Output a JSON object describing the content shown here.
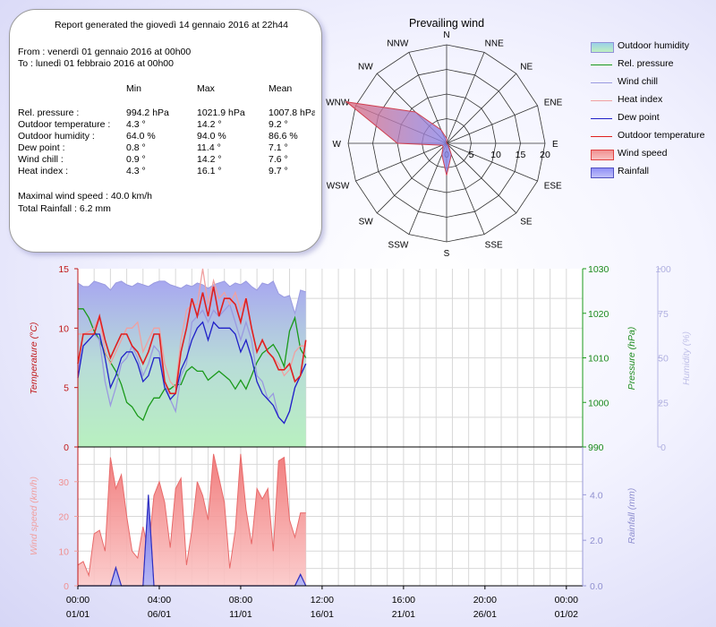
{
  "report": {
    "title": "Report generated the giovedì 14 gennaio 2016 at 22h44",
    "from": "From : venerdì 01 gennaio 2016 at 00h00",
    "to": "To : lunedì 01 febbraio 2016 at 00h00",
    "columns": [
      "Min",
      "Max",
      "Mean"
    ],
    "rows": [
      {
        "label": "Rel. pressure :",
        "min": "994.2 hPa",
        "max": "1021.9 hPa",
        "mean": "1007.8 hPa"
      },
      {
        "label": "Outdoor temperature :",
        "min": "4.3 °",
        "max": "14.2 °",
        "mean": "9.2 °"
      },
      {
        "label": "Outdoor humidity :",
        "min": "64.0 %",
        "max": "94.0 %",
        "mean": "86.6 %"
      },
      {
        "label": "Dew point :",
        "min": "0.8 °",
        "max": "11.4 °",
        "mean": "7.1 °"
      },
      {
        "label": "Wind chill :",
        "min": "0.9 °",
        "max": "14.2 °",
        "mean": "7.6 °"
      },
      {
        "label": "Heat index :",
        "min": "4.3 °",
        "max": "16.1 °",
        "mean": "9.7 °"
      }
    ],
    "max_wind": "Maximal wind speed : 40.0 km/h",
    "total_rain": "Total Rainfall : 6.2 mm"
  },
  "legend": [
    {
      "label": "Outdoor humidity",
      "kind": "area",
      "color": "#b8e8c0",
      "edge": "#9090d8"
    },
    {
      "label": "Rel. pressure",
      "kind": "line",
      "color": "#1a9a1a"
    },
    {
      "label": "Wind chill",
      "kind": "line",
      "color": "#9a9ae0"
    },
    {
      "label": "Heat index",
      "kind": "line",
      "color": "#f0a0a0"
    },
    {
      "label": "Dew point",
      "kind": "line",
      "color": "#2020c8"
    },
    {
      "label": "Outdoor temperature",
      "kind": "line",
      "color": "#e02020"
    },
    {
      "label": "Wind speed",
      "kind": "area",
      "color": "#f07878",
      "edge": "#e04040"
    },
    {
      "label": "Rainfall",
      "kind": "area",
      "color": "#8080f0",
      "edge": "#5050c0"
    }
  ],
  "chart_data": [
    {
      "type": "radar",
      "title": "Prevailing wind",
      "directions": [
        "N",
        "NNE",
        "NE",
        "ENE",
        "E",
        "ESE",
        "SE",
        "SSE",
        "S",
        "SSW",
        "SW",
        "WSW",
        "W",
        "WNW",
        "NW",
        "NNW"
      ],
      "radial_ticks": [
        "0",
        "5",
        "10",
        "15",
        "20"
      ],
      "rmax": 20,
      "values": [
        1,
        0,
        0,
        0,
        0,
        0,
        0.5,
        2.5,
        6.5,
        2.5,
        1,
        1,
        10,
        22,
        9,
        3
      ],
      "color": "#e04040"
    },
    {
      "type": "line",
      "ylabel": "Temperature (°C)",
      "ylabel_right1": "Pressure (hPa)",
      "ylabel_right2": "Humidity (%)",
      "ylim": [
        0,
        15
      ],
      "yticks": [
        "0",
        "5",
        "10",
        "15"
      ],
      "pressure_ylim": [
        990,
        1030
      ],
      "pressure_ticks": [
        "990",
        "1000",
        "1010",
        "1020",
        "1030"
      ],
      "humidity_ylim": [
        0,
        100
      ],
      "humidity_ticks": [
        "0",
        "25",
        "50",
        "75",
        "100"
      ],
      "x": [
        0,
        0.33,
        0.67,
        1,
        1.33,
        1.67,
        2,
        2.33,
        2.67,
        3,
        3.33,
        3.67,
        4,
        4.33,
        4.67,
        5,
        5.33,
        5.67,
        6,
        6.33,
        6.67,
        7,
        7.33,
        7.67,
        8,
        8.33,
        8.67,
        9,
        9.33,
        9.67,
        10,
        10.33,
        10.67,
        11,
        11.33,
        11.67,
        12,
        12.33,
        12.67,
        13,
        13.33,
        13.67,
        14
      ],
      "series": [
        {
          "name": "Outdoor humidity",
          "axis": "humidity",
          "color": "#9a9ae0",
          "values": [
            92,
            90,
            90,
            93,
            92,
            91,
            88,
            92,
            93,
            91,
            90,
            92,
            91,
            90,
            92,
            93,
            93,
            91,
            90,
            89,
            91,
            90,
            92,
            91,
            89,
            91,
            92,
            93,
            90,
            92,
            91,
            93,
            90,
            88,
            92,
            91,
            93,
            86,
            84,
            85,
            75,
            88,
            87
          ]
        },
        {
          "name": "Rel. pressure",
          "axis": "pressure",
          "color": "#1a9a1a",
          "values": [
            1021,
            1021,
            1019,
            1016,
            1014,
            1011,
            1009,
            1007,
            1004,
            1000,
            999,
            997,
            996,
            999,
            1001,
            1001,
            1003,
            1003,
            1004,
            1004,
            1007,
            1008,
            1007,
            1007,
            1005,
            1006,
            1007,
            1006,
            1005,
            1003,
            1005,
            1003,
            1006,
            1009,
            1011,
            1012,
            1013,
            1011,
            1008,
            1016,
            1019,
            1012,
            1010
          ]
        },
        {
          "name": "Wind chill",
          "axis": "temp",
          "color": "#9a9ae0",
          "values": [
            6.5,
            8.5,
            9,
            9.5,
            9,
            5.5,
            3.5,
            5,
            7,
            7.5,
            8.5,
            7.5,
            6,
            7,
            8.5,
            8,
            5.5,
            4,
            3,
            6,
            7,
            10.5,
            11,
            11.5,
            10.5,
            11.5,
            11,
            11.5,
            12,
            10.5,
            9,
            10.5,
            9,
            6,
            5.5,
            4,
            4.5,
            2.5,
            2,
            3,
            5,
            6,
            7
          ]
        },
        {
          "name": "Heat index",
          "axis": "temp",
          "color": "#f0a0a0",
          "values": [
            9.5,
            9.5,
            9.7,
            10,
            11,
            8,
            7,
            8,
            9,
            10,
            10,
            10.5,
            8,
            9,
            10,
            10,
            7,
            5.5,
            5,
            9,
            11.5,
            12,
            12,
            15,
            12,
            14,
            12.5,
            13,
            12,
            13,
            11.5,
            12.5,
            10,
            8,
            9,
            8,
            7.5,
            7,
            6,
            6.5,
            8,
            8.5,
            8.5
          ]
        },
        {
          "name": "Dew point",
          "axis": "temp",
          "color": "#2020c8",
          "values": [
            5.8,
            8.5,
            9,
            9.5,
            9.5,
            7.5,
            5,
            6,
            7.5,
            8,
            8,
            7,
            5.5,
            6,
            7.5,
            7.5,
            5,
            4,
            4.5,
            6.5,
            7.5,
            9,
            10,
            10.5,
            9,
            10.5,
            10,
            10,
            10,
            9.5,
            8,
            9,
            7.5,
            5.5,
            4.5,
            4,
            3.5,
            2.5,
            2,
            3,
            5,
            6,
            7
          ]
        },
        {
          "name": "Outdoor temperature",
          "axis": "temp",
          "color": "#e02020",
          "values": [
            7,
            9.5,
            9.5,
            9.5,
            11,
            9,
            7.5,
            8.5,
            9.5,
            9.5,
            8.5,
            8,
            7,
            8,
            9.5,
            9.5,
            5.5,
            4.5,
            4.5,
            8,
            10,
            12.5,
            11,
            13,
            11,
            13.5,
            11,
            12.5,
            12.5,
            12,
            10.5,
            12.5,
            10,
            8,
            9,
            8,
            7.5,
            6.5,
            6.5,
            7,
            5.5,
            6,
            9
          ]
        }
      ]
    },
    {
      "type": "area",
      "ylabel": "Wind speed (km/h)",
      "ylabel_right": "Rainfall (mm)",
      "ylim": [
        0,
        40
      ],
      "yticks": [
        "0",
        "10",
        "20",
        "30"
      ],
      "rain_ylim": [
        0,
        6.1
      ],
      "rain_ticks": [
        "0.0",
        "2.0",
        "4.0"
      ],
      "x": [
        0,
        0.33,
        0.67,
        1,
        1.33,
        1.67,
        2,
        2.33,
        2.67,
        3,
        3.33,
        3.67,
        4,
        4.33,
        4.67,
        5,
        5.33,
        5.67,
        6,
        6.33,
        6.67,
        7,
        7.33,
        7.67,
        8,
        8.33,
        8.67,
        9,
        9.33,
        9.67,
        10,
        10.33,
        10.67,
        11,
        11.33,
        11.67,
        12,
        12.33,
        12.67,
        13,
        13.33,
        13.67,
        14
      ],
      "xticks_time": [
        "00:00",
        "04:00",
        "08:00",
        "12:00",
        "16:00",
        "20:00",
        "00:00"
      ],
      "xticks_date": [
        "01/01",
        "06/01",
        "11/01",
        "16/01",
        "21/01",
        "26/01",
        "01/02"
      ],
      "x_span": 31,
      "series": [
        {
          "name": "Wind speed",
          "color": "#f07878",
          "values": [
            6,
            7,
            3,
            15,
            16,
            10,
            37,
            28,
            32,
            20,
            10,
            8,
            17,
            10,
            26,
            30,
            24,
            11,
            28,
            31,
            6,
            16,
            30,
            26,
            19,
            38,
            31,
            24,
            5,
            16,
            38,
            22,
            12,
            28,
            25,
            28,
            10,
            36,
            37,
            19,
            14,
            21,
            21
          ]
        },
        {
          "name": "Rainfall",
          "color": "#8080f0",
          "values": [
            0,
            0,
            0,
            0,
            0,
            0,
            0,
            0.8,
            0,
            0,
            0,
            0,
            0,
            4.0,
            0,
            0,
            0,
            0,
            0,
            0,
            0,
            0,
            0,
            0,
            0,
            0,
            0,
            0,
            0,
            0,
            0,
            0,
            0,
            0,
            0,
            0,
            0,
            0,
            0,
            0,
            0,
            0.5,
            0
          ]
        }
      ]
    }
  ]
}
